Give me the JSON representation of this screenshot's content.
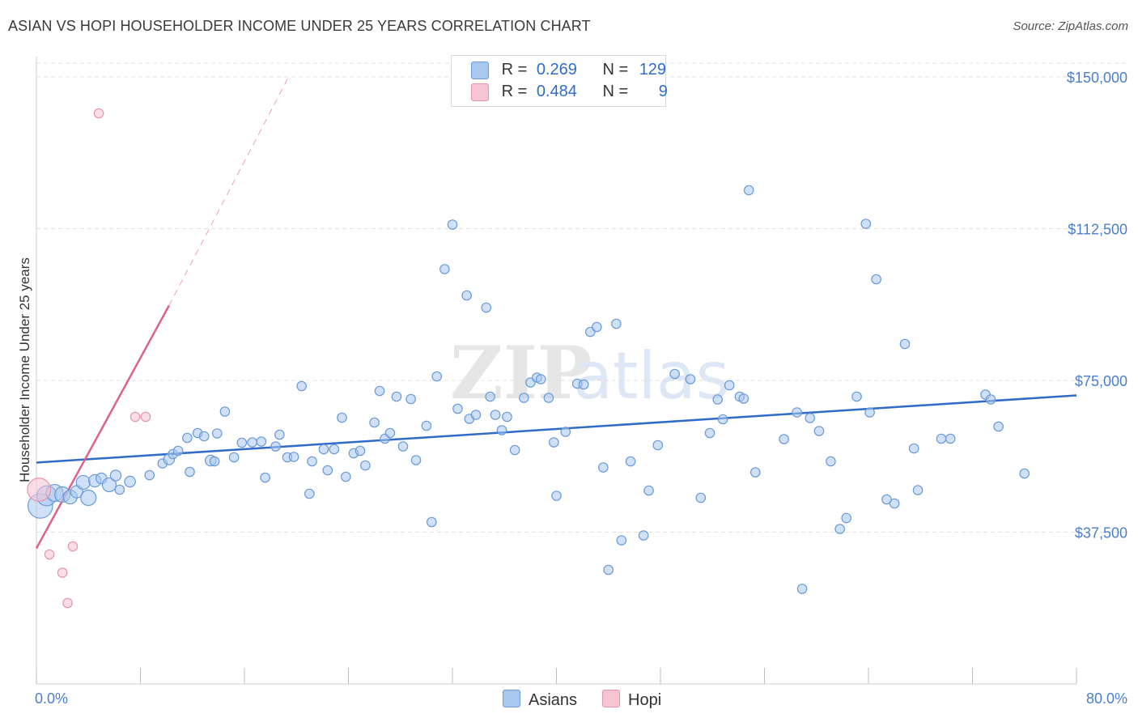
{
  "title": "ASIAN VS HOPI HOUSEHOLDER INCOME UNDER 25 YEARS CORRELATION CHART",
  "source": "Source: ZipAtlas.com",
  "watermark": {
    "bold": "ZIP",
    "light": "atlas"
  },
  "colors": {
    "asian_fill": "#a9c8f0",
    "asian_stroke": "#6a9ad8",
    "asian_line": "#2f6cc8",
    "hopi_fill": "#f6c3d3",
    "hopi_stroke": "#e993ae",
    "hopi_line": "#e0608d",
    "tick_text": "#4a7fcf",
    "grid": "#e0e0e0"
  },
  "legend": {
    "rows": [
      {
        "name": "asian",
        "r_label": "R =",
        "r_value": "0.269",
        "n_label": "N =",
        "n_value": "129"
      },
      {
        "name": "hopi",
        "r_label": "R =",
        "r_value": "0.484",
        "n_label": "N =",
        "n_value": "9"
      }
    ]
  },
  "bottom_legend": {
    "asians": "Asians",
    "hopi": "Hopi"
  },
  "chart_data": {
    "type": "scatter",
    "ylabel": "Householder Income Under 25 years",
    "xlim": [
      0,
      80
    ],
    "ylim": [
      0,
      155000
    ],
    "x_tick_labels": [
      "0.0%",
      "80.0%"
    ],
    "y_ticks": [
      {
        "value": 37500,
        "label": "$37,500"
      },
      {
        "value": 75000,
        "label": "$75,000"
      },
      {
        "value": 112500,
        "label": "$112,500"
      },
      {
        "value": 150000,
        "label": "$150,000"
      }
    ],
    "grid": true,
    "series": [
      {
        "name": "Asians",
        "trend": {
          "x0": 0,
          "y0": 54700,
          "x1": 80,
          "y1": 71300,
          "dashed": false
        },
        "points": [
          [
            0.3,
            44000,
            1.6
          ],
          [
            0.8,
            46500,
            1.3
          ],
          [
            1.4,
            47200,
            1.1
          ],
          [
            2.0,
            46800,
            1.0
          ],
          [
            2.6,
            46200,
            0.9
          ],
          [
            3.1,
            47500,
            0.8
          ],
          [
            3.6,
            49800,
            0.9
          ],
          [
            4.0,
            46000,
            1.0
          ],
          [
            4.5,
            50200,
            0.8
          ],
          [
            5.0,
            50800,
            0.7
          ],
          [
            5.6,
            49200,
            0.9
          ],
          [
            6.1,
            51500,
            0.7
          ],
          [
            6.4,
            48000,
            0.6
          ],
          [
            7.2,
            50000,
            0.7
          ],
          [
            8.7,
            51600,
            0.6
          ],
          [
            9.7,
            54500,
            0.6
          ],
          [
            10.2,
            55500,
            0.7
          ],
          [
            10.5,
            56800,
            0.6
          ],
          [
            10.9,
            57600,
            0.6
          ],
          [
            11.6,
            60800,
            0.6
          ],
          [
            11.8,
            52400,
            0.6
          ],
          [
            12.4,
            62000,
            0.6
          ],
          [
            12.9,
            61200,
            0.6
          ],
          [
            13.4,
            55200,
            0.7
          ],
          [
            13.7,
            55000,
            0.6
          ],
          [
            13.9,
            61900,
            0.6
          ],
          [
            14.5,
            67300,
            0.6
          ],
          [
            15.2,
            56000,
            0.6
          ],
          [
            15.8,
            59600,
            0.6
          ],
          [
            16.6,
            59700,
            0.6
          ],
          [
            17.3,
            59900,
            0.6
          ],
          [
            17.6,
            51000,
            0.6
          ],
          [
            18.4,
            58700,
            0.6
          ],
          [
            18.7,
            61600,
            0.6
          ],
          [
            19.3,
            56000,
            0.6
          ],
          [
            19.8,
            56100,
            0.6
          ],
          [
            20.4,
            73600,
            0.6
          ],
          [
            21.0,
            47000,
            0.6
          ],
          [
            21.2,
            55000,
            0.6
          ],
          [
            22.1,
            58000,
            0.6
          ],
          [
            22.4,
            52800,
            0.6
          ],
          [
            22.9,
            58000,
            0.6
          ],
          [
            23.5,
            65800,
            0.6
          ],
          [
            23.8,
            51200,
            0.6
          ],
          [
            24.4,
            57000,
            0.6
          ],
          [
            24.9,
            57600,
            0.6
          ],
          [
            25.3,
            54000,
            0.6
          ],
          [
            26.0,
            64600,
            0.6
          ],
          [
            26.4,
            72400,
            0.6
          ],
          [
            26.8,
            60600,
            0.6
          ],
          [
            27.2,
            62000,
            0.6
          ],
          [
            27.7,
            71000,
            0.6
          ],
          [
            28.2,
            58700,
            0.6
          ],
          [
            28.8,
            70400,
            0.6
          ],
          [
            29.2,
            55300,
            0.6
          ],
          [
            30.0,
            63800,
            0.6
          ],
          [
            30.4,
            40000,
            0.6
          ],
          [
            30.8,
            76000,
            0.6
          ],
          [
            32.0,
            113500,
            0.6
          ],
          [
            32.4,
            68000,
            0.6
          ],
          [
            31.4,
            102500,
            0.6
          ],
          [
            33.1,
            96000,
            0.6
          ],
          [
            33.3,
            65500,
            0.6
          ],
          [
            33.8,
            66500,
            0.6
          ],
          [
            34.6,
            93000,
            0.6
          ],
          [
            34.9,
            71000,
            0.6
          ],
          [
            35.3,
            66500,
            0.6
          ],
          [
            35.8,
            62700,
            0.6
          ],
          [
            36.2,
            66000,
            0.6
          ],
          [
            36.8,
            57800,
            0.6
          ],
          [
            37.5,
            70700,
            0.6
          ],
          [
            38.0,
            74500,
            0.6
          ],
          [
            38.5,
            75700,
            0.6
          ],
          [
            38.8,
            75300,
            0.6
          ],
          [
            39.4,
            70700,
            0.6
          ],
          [
            39.8,
            59700,
            0.6
          ],
          [
            40.0,
            46500,
            0.6
          ],
          [
            40.7,
            62300,
            0.6
          ],
          [
            41.6,
            74200,
            0.6
          ],
          [
            42.1,
            74000,
            0.6
          ],
          [
            42.6,
            87000,
            0.6
          ],
          [
            43.1,
            88200,
            0.6
          ],
          [
            43.6,
            53500,
            0.6
          ],
          [
            44.0,
            28200,
            0.6
          ],
          [
            44.6,
            89000,
            0.6
          ],
          [
            45.0,
            35500,
            0.6
          ],
          [
            45.7,
            55000,
            0.6
          ],
          [
            46.7,
            36700,
            0.6
          ],
          [
            47.1,
            47800,
            0.6
          ],
          [
            47.8,
            59000,
            0.6
          ],
          [
            49.1,
            76600,
            0.6
          ],
          [
            50.3,
            75300,
            0.6
          ],
          [
            51.1,
            46000,
            0.6
          ],
          [
            51.8,
            62000,
            0.6
          ],
          [
            52.4,
            70300,
            0.6
          ],
          [
            52.8,
            65400,
            0.6
          ],
          [
            53.3,
            73800,
            0.6
          ],
          [
            54.1,
            71000,
            0.6
          ],
          [
            54.4,
            70500,
            0.6
          ],
          [
            54.8,
            122000,
            0.6
          ],
          [
            55.3,
            52300,
            0.6
          ],
          [
            57.5,
            60500,
            0.6
          ],
          [
            58.5,
            67100,
            0.6
          ],
          [
            58.9,
            23500,
            0.6
          ],
          [
            59.5,
            65700,
            0.6
          ],
          [
            60.2,
            62500,
            0.6
          ],
          [
            61.1,
            55000,
            0.6
          ],
          [
            61.8,
            38300,
            0.6
          ],
          [
            62.3,
            41000,
            0.6
          ],
          [
            63.1,
            71000,
            0.6
          ],
          [
            63.8,
            113700,
            0.6
          ],
          [
            64.1,
            67100,
            0.6
          ],
          [
            64.6,
            100000,
            0.6
          ],
          [
            65.4,
            45600,
            0.6
          ],
          [
            66.0,
            44600,
            0.6
          ],
          [
            66.8,
            84000,
            0.6
          ],
          [
            67.5,
            58200,
            0.6
          ],
          [
            67.8,
            47900,
            0.6
          ],
          [
            69.6,
            60600,
            0.6
          ],
          [
            70.3,
            60600,
            0.6
          ],
          [
            73.0,
            71500,
            0.6
          ],
          [
            73.4,
            70300,
            0.6
          ],
          [
            74.0,
            63600,
            0.6
          ],
          [
            76.0,
            52000,
            0.6
          ]
        ]
      },
      {
        "name": "Hopi",
        "trend": {
          "x0": 0,
          "y0": 33500,
          "x1": 10.2,
          "y1": 93500,
          "dash_x1": 19.4,
          "dash_y1": 150000
        },
        "points": [
          [
            0.2,
            48000,
            1.5
          ],
          [
            1.0,
            32000,
            0.6
          ],
          [
            2.0,
            27500,
            0.6
          ],
          [
            2.4,
            20000,
            0.6
          ],
          [
            2.8,
            34000,
            0.6
          ],
          [
            4.8,
            141000,
            0.6
          ],
          [
            7.6,
            66000,
            0.6
          ],
          [
            8.4,
            66000,
            0.6
          ]
        ]
      }
    ]
  }
}
